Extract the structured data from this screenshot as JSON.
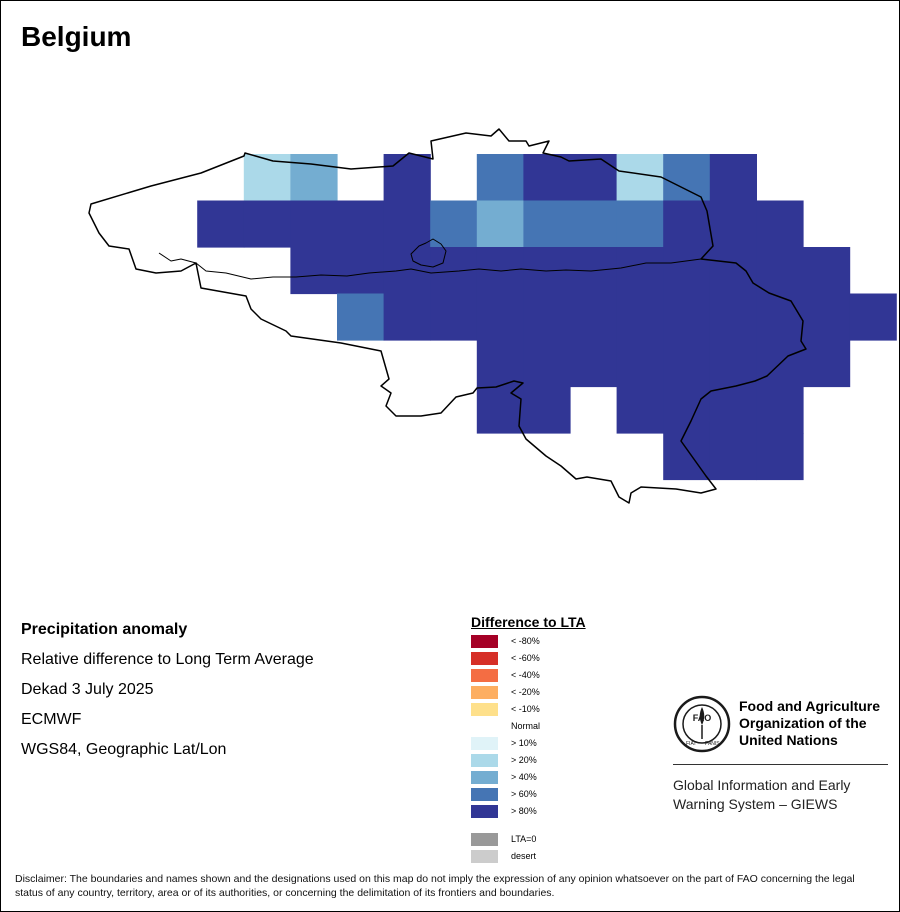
{
  "map": {
    "title": "Belgium",
    "legend_title": "Difference to LTA",
    "legend": {
      "negative": [
        {
          "label": "< -80%",
          "color": "#a50026"
        },
        {
          "label": "< -60%",
          "color": "#d62f27"
        },
        {
          "label": "< -40%",
          "color": "#f46d43"
        },
        {
          "label": "< -20%",
          "color": "#fdae61"
        },
        {
          "label": "< -10%",
          "color": "#fee08b"
        }
      ],
      "normal_label": "Normal",
      "positive": [
        {
          "label": "> 10%",
          "color": "#e0f3f8"
        },
        {
          "label": "> 20%",
          "color": "#abd9e9"
        },
        {
          "label": "> 40%",
          "color": "#74add1"
        },
        {
          "label": "> 60%",
          "color": "#4575b4"
        },
        {
          "label": "> 80%",
          "color": "#313695"
        }
      ],
      "special": [
        {
          "label": "LTA=0",
          "color": "#999999"
        },
        {
          "label": "desert",
          "color": "#cccccc"
        }
      ]
    },
    "grid_classes_by_row": [
      [
        "",
        "",
        "",
        "> 20%",
        "> 40%",
        "",
        "> 80%",
        "",
        "> 60%",
        "> 80%",
        "> 80%",
        "> 20%",
        "> 60%",
        "> 80%",
        "",
        "",
        ""
      ],
      [
        "",
        "",
        "> 80%",
        "> 80%",
        "> 80%",
        "> 80%",
        "> 80%",
        "> 60%",
        "> 40%",
        "> 60%",
        "> 60%",
        "> 60%",
        "> 80%",
        "> 80%",
        "> 80%",
        "",
        ""
      ],
      [
        "",
        "",
        "",
        "",
        "> 80%",
        "> 80%",
        "> 80%",
        "> 80%",
        "> 80%",
        "> 80%",
        "> 80%",
        "> 80%",
        "> 80%",
        "> 80%",
        "> 80%",
        "> 80%",
        ""
      ],
      [
        "",
        "",
        "",
        "",
        "",
        "> 60%",
        "> 80%",
        "> 80%",
        "> 80%",
        "> 80%",
        "> 80%",
        "> 80%",
        "> 80%",
        "> 80%",
        "> 80%",
        "> 80%",
        "> 80%"
      ],
      [
        "",
        "",
        "",
        "",
        "",
        "",
        "",
        "",
        "> 80%",
        "> 80%",
        "> 80%",
        "> 80%",
        "> 80%",
        "> 80%",
        "> 80%",
        "> 80%",
        ""
      ],
      [
        "",
        "",
        "",
        "",
        "",
        "",
        "",
        "",
        "> 80%",
        "> 80%",
        "",
        "> 80%",
        "> 80%",
        "> 80%",
        "> 80%",
        "",
        ""
      ],
      [
        "",
        "",
        "",
        "",
        "",
        "",
        "",
        "",
        "",
        "",
        "",
        "",
        "> 80%",
        "> 80%",
        "> 80%",
        "",
        ""
      ]
    ]
  },
  "info": {
    "heading": "Precipitation anomaly",
    "line1": "Relative difference to Long Term Average",
    "line2": "Dekad 3 July 2025",
    "line3": "ECMWF",
    "line4": "WGS84, Geographic Lat/Lon"
  },
  "fao": {
    "name_line1": "Food and Agriculture",
    "name_line2": "Organization of the",
    "name_line3": "United Nations",
    "emblem_text_left": "FIAT",
    "emblem_text_right": "PANIS",
    "emblem_letters": "FAO",
    "system_line1": "Global Information and Early",
    "system_line2": "Warning System – GIEWS"
  },
  "disclaimer": "Disclaimer: The boundaries and names shown and the designations used on this map do not imply the expression of any opinion whatsoever on the part of FAO concerning the legal status of any country, territory, area or of its authorities, or concerning the delimitation of its frontiers and boundaries."
}
